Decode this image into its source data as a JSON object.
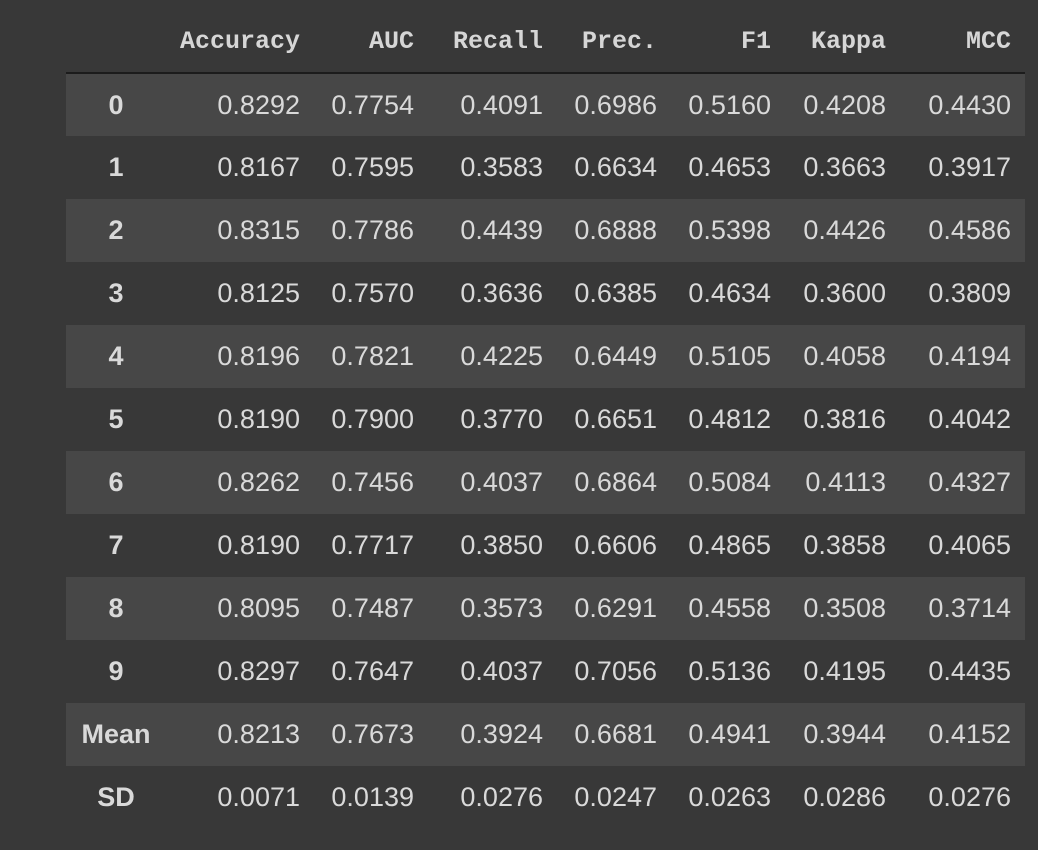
{
  "table": {
    "columns": [
      "Accuracy",
      "AUC",
      "Recall",
      "Prec.",
      "F1",
      "Kappa",
      "MCC"
    ],
    "rows": [
      {
        "index": "0",
        "values": [
          "0.8292",
          "0.7754",
          "0.4091",
          "0.6986",
          "0.5160",
          "0.4208",
          "0.4430"
        ]
      },
      {
        "index": "1",
        "values": [
          "0.8167",
          "0.7595",
          "0.3583",
          "0.6634",
          "0.4653",
          "0.3663",
          "0.3917"
        ]
      },
      {
        "index": "2",
        "values": [
          "0.8315",
          "0.7786",
          "0.4439",
          "0.6888",
          "0.5398",
          "0.4426",
          "0.4586"
        ]
      },
      {
        "index": "3",
        "values": [
          "0.8125",
          "0.7570",
          "0.3636",
          "0.6385",
          "0.4634",
          "0.3600",
          "0.3809"
        ]
      },
      {
        "index": "4",
        "values": [
          "0.8196",
          "0.7821",
          "0.4225",
          "0.6449",
          "0.5105",
          "0.4058",
          "0.4194"
        ]
      },
      {
        "index": "5",
        "values": [
          "0.8190",
          "0.7900",
          "0.3770",
          "0.6651",
          "0.4812",
          "0.3816",
          "0.4042"
        ]
      },
      {
        "index": "6",
        "values": [
          "0.8262",
          "0.7456",
          "0.4037",
          "0.6864",
          "0.5084",
          "0.4113",
          "0.4327"
        ]
      },
      {
        "index": "7",
        "values": [
          "0.8190",
          "0.7717",
          "0.3850",
          "0.6606",
          "0.4865",
          "0.3858",
          "0.4065"
        ]
      },
      {
        "index": "8",
        "values": [
          "0.8095",
          "0.7487",
          "0.3573",
          "0.6291",
          "0.4558",
          "0.3508",
          "0.3714"
        ]
      },
      {
        "index": "9",
        "values": [
          "0.8297",
          "0.7647",
          "0.4037",
          "0.7056",
          "0.5136",
          "0.4195",
          "0.4435"
        ]
      },
      {
        "index": "Mean",
        "values": [
          "0.8213",
          "0.7673",
          "0.3924",
          "0.6681",
          "0.4941",
          "0.3944",
          "0.4152"
        ]
      },
      {
        "index": "SD",
        "values": [
          "0.0071",
          "0.0139",
          "0.0276",
          "0.0247",
          "0.0263",
          "0.0286",
          "0.0276"
        ]
      }
    ]
  },
  "colors": {
    "background": "#383838",
    "row_stripe": "#474747",
    "text": "#d9d9d9",
    "header_rule": "#1c1c1c"
  }
}
